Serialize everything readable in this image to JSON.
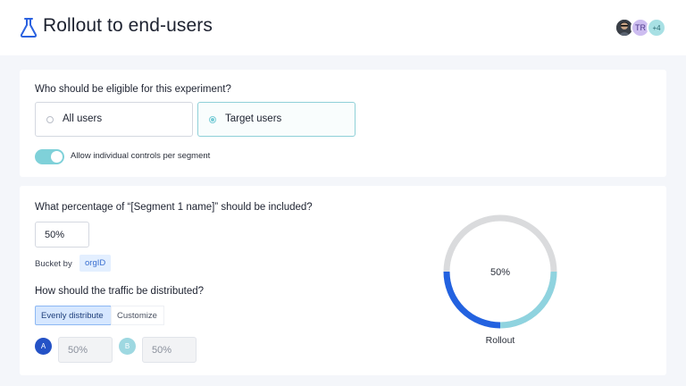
{
  "header": {
    "title": "Rollout to end-users",
    "icon": "flask-icon",
    "avatars": [
      {
        "type": "photo",
        "label": ""
      },
      {
        "type": "initials",
        "label": "TR"
      },
      {
        "type": "more",
        "label": "+4"
      }
    ]
  },
  "eligibility": {
    "question": "Who should be eligible for this experiment?",
    "options": [
      {
        "label": "All users",
        "selected": false
      },
      {
        "label": "Target users",
        "selected": true
      }
    ],
    "toggle": {
      "label": "Allow individual controls per segment",
      "on": true
    }
  },
  "segment": {
    "question": "What percentage of “[Segment 1 name]” should be included?",
    "percentage_value": "50%",
    "bucket_label": "Bucket by",
    "bucket_value": "orgID",
    "distribution_question": "How should the traffic be distributed?",
    "distribution_options": [
      {
        "label": "Evenly distribute",
        "selected": true
      },
      {
        "label": "Customize",
        "selected": false
      }
    ],
    "variants": [
      {
        "badge": "A",
        "value": "50%",
        "color": "#2452c6"
      },
      {
        "badge": "B",
        "value": "50%",
        "color": "#9ed8e1"
      }
    ]
  },
  "rollout_chart": {
    "center_label": "50%",
    "caption": "Rollout",
    "rollout_fraction": 0.5,
    "split": [
      {
        "variant": "A",
        "fraction": 0.25,
        "color": "#2362e0"
      },
      {
        "variant": "B",
        "fraction": 0.25,
        "color": "#8fd3df"
      }
    ],
    "track_color": "#dadbdd"
  }
}
